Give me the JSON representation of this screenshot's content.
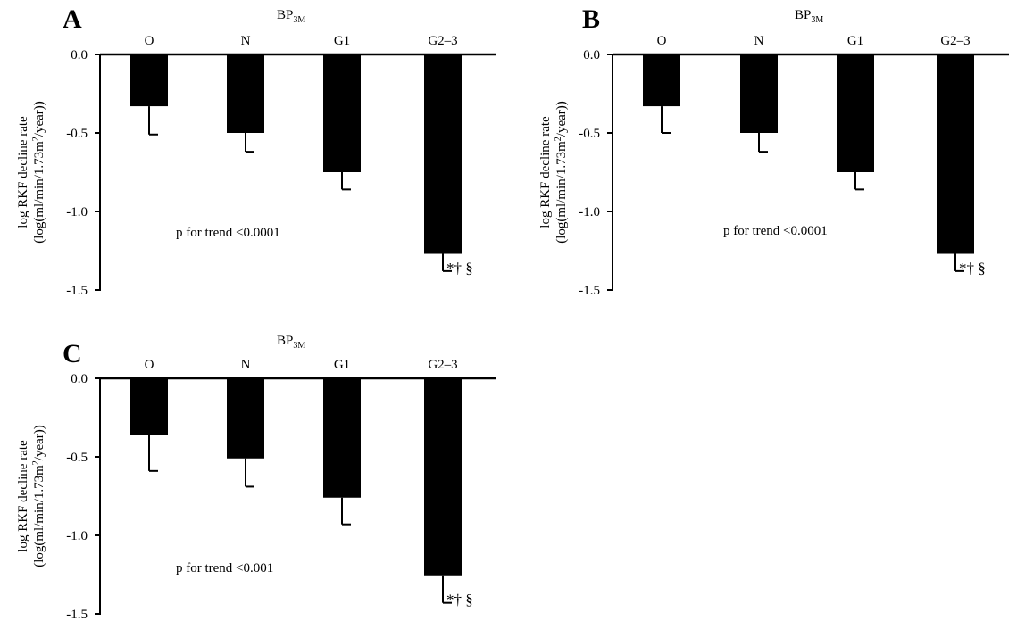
{
  "chart_data": [
    {
      "type": "bar",
      "panel": "A",
      "top_label": "BP",
      "top_label_sub": "3M",
      "categories": [
        "O",
        "N",
        "G1",
        "G2–3"
      ],
      "values": [
        -0.33,
        -0.5,
        -0.75,
        -1.27
      ],
      "errors": [
        0.18,
        0.12,
        0.11,
        0.11
      ],
      "ylabel_line1": "log RKF decline rate",
      "ylabel_line2_pre": "(log(ml/min/1.73m",
      "ylabel_line2_sup": "2",
      "ylabel_line2_post": "/year))",
      "ylim": [
        -1.5,
        0
      ],
      "yticks": [
        "0.0",
        "-0.5",
        "-1.0",
        "-1.5"
      ],
      "annotation": "p for trend <0.0001",
      "significance": "*† §"
    },
    {
      "type": "bar",
      "panel": "B",
      "top_label": "BP",
      "top_label_sub": "3M",
      "categories": [
        "O",
        "N",
        "G1",
        "G2–3"
      ],
      "values": [
        -0.33,
        -0.5,
        -0.75,
        -1.27
      ],
      "errors": [
        0.17,
        0.12,
        0.11,
        0.11
      ],
      "ylabel_line1": "log RKF decline rate",
      "ylabel_line2_pre": "(log(ml/min/1.73m",
      "ylabel_line2_sup": "2",
      "ylabel_line2_post": "/year))",
      "ylim": [
        -1.5,
        0
      ],
      "yticks": [
        "0.0",
        "-0.5",
        "-1.0",
        "-1.5"
      ],
      "annotation": "p for trend <0.0001",
      "significance": "*† §"
    },
    {
      "type": "bar",
      "panel": "C",
      "top_label": "BP",
      "top_label_sub": "3M",
      "categories": [
        "O",
        "N",
        "G1",
        "G2–3"
      ],
      "values": [
        -0.36,
        -0.51,
        -0.76,
        -1.26
      ],
      "errors": [
        0.23,
        0.18,
        0.17,
        0.17
      ],
      "ylabel_line1": "log RKF decline rate",
      "ylabel_line2_pre": "(log(ml/min/1.73m",
      "ylabel_line2_sup": "2",
      "ylabel_line2_post": "/year))",
      "ylim": [
        -1.5,
        0
      ],
      "yticks": [
        "0.0",
        "-0.5",
        "-1.0",
        "-1.5"
      ],
      "annotation": "p for trend <0.001",
      "significance": "*† §"
    }
  ]
}
